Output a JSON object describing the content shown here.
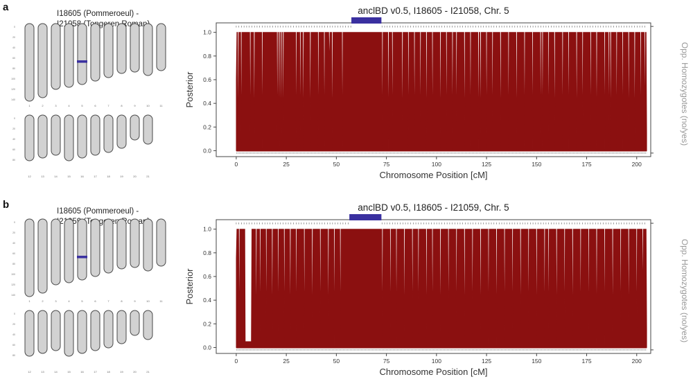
{
  "panels": [
    {
      "letter": "a",
      "pair_line1": "I18605 (Pommeroeul) -",
      "pair_line2": "I21058 (Tongeren Roman)",
      "highlight_chrom": 5,
      "highlight_frac": 0.62,
      "chart_data": {
        "type": "area",
        "title": "anclBD v0.5, I18605 - I21058, Chr. 5",
        "xlabel": "Chromosome Position [cM]",
        "ylabel": "Posterior",
        "ylabel_right": "Opp. Homozygotes (no/yes)",
        "xlim": [
          -10,
          207
        ],
        "ylim": [
          -0.05,
          1.08
        ],
        "xticks": [
          0,
          25,
          50,
          75,
          100,
          125,
          150,
          175,
          200
        ],
        "yticks": [
          0.0,
          0.2,
          0.4,
          0.6,
          0.8,
          1.0
        ],
        "ibd_segment": [
          57.5,
          72.5
        ],
        "posterior_drops": [
          [
            0,
            0.6
          ],
          [
            1,
            0.0
          ],
          [
            2.5,
            0.0
          ],
          [
            7,
            0.0
          ],
          [
            9,
            0.0
          ],
          [
            13,
            0.0
          ],
          [
            20.5,
            0.0
          ],
          [
            21.5,
            0.0
          ],
          [
            22.5,
            0.0
          ],
          [
            23.5,
            0.0
          ],
          [
            30,
            0.0
          ],
          [
            32,
            0.0
          ],
          [
            33.5,
            0.0
          ],
          [
            37,
            0.0
          ],
          [
            41,
            0.0
          ],
          [
            44,
            0.0
          ],
          [
            46.5,
            0.7
          ],
          [
            48,
            0.0
          ],
          [
            53,
            0.0
          ],
          [
            73,
            0.0
          ],
          [
            76,
            0.0
          ],
          [
            78,
            0.0
          ],
          [
            83,
            0.0
          ],
          [
            86,
            0.0
          ],
          [
            89,
            0.0
          ],
          [
            92,
            0.0
          ],
          [
            95,
            0.0
          ],
          [
            98,
            0.0
          ],
          [
            102,
            0.0
          ],
          [
            105,
            0.0
          ],
          [
            108,
            0.0
          ],
          [
            110,
            0.0
          ],
          [
            114,
            0.0
          ],
          [
            117,
            0.0
          ],
          [
            121,
            0.0
          ],
          [
            122,
            0.0
          ],
          [
            125,
            0.0
          ],
          [
            128,
            0.0
          ],
          [
            132,
            0.0
          ],
          [
            136,
            0.0
          ],
          [
            140,
            0.0
          ],
          [
            144,
            0.0
          ],
          [
            148,
            0.0
          ],
          [
            152,
            0.0
          ],
          [
            153,
            0.0
          ],
          [
            156,
            0.0
          ],
          [
            159,
            0.0
          ],
          [
            163,
            0.0
          ],
          [
            166,
            0.0
          ],
          [
            170,
            0.0
          ],
          [
            173,
            0.0
          ],
          [
            177,
            0.0
          ],
          [
            180,
            0.0
          ],
          [
            184,
            0.0
          ],
          [
            186,
            0.0
          ],
          [
            187,
            0.0
          ],
          [
            190,
            0.0
          ],
          [
            193,
            0.0
          ],
          [
            196,
            0.0
          ],
          [
            199,
            0.0
          ],
          [
            202,
            0.0
          ],
          [
            204,
            0.15
          ]
        ],
        "posterior_end": 205,
        "low_region": [
          [
            24.5,
            28.5
          ],
          [
            53.5,
            72.5
          ]
        ]
      }
    },
    {
      "letter": "b",
      "pair_line1": "I18605 (Pommeroeul) -",
      "pair_line2": "I21059 (Tongeren Roman)",
      "highlight_chrom": 5,
      "highlight_frac": 0.62,
      "chart_data": {
        "type": "area",
        "title": "anclBD v0.5, I18605 - I21059, Chr. 5",
        "xlabel": "Chromosome Position [cM]",
        "ylabel": "Posterior",
        "ylabel_right": "Opp. Homozygotes (no/yes)",
        "xlim": [
          -10,
          207
        ],
        "ylim": [
          -0.05,
          1.08
        ],
        "xticks": [
          0,
          25,
          50,
          75,
          100,
          125,
          150,
          175,
          200
        ],
        "yticks": [
          0.0,
          0.2,
          0.4,
          0.6,
          0.8,
          1.0
        ],
        "ibd_segment": [
          56.5,
          72.5
        ],
        "posterior_drops": [
          [
            0,
            0.75
          ],
          [
            1.5,
            0.0
          ],
          [
            3,
            1.0
          ],
          [
            4.5,
            0.05
          ],
          [
            7.5,
            0.0
          ],
          [
            10,
            0.0
          ],
          [
            12,
            0.0
          ],
          [
            15,
            0.0
          ],
          [
            18,
            0.0
          ],
          [
            21,
            0.0
          ],
          [
            24,
            0.0
          ],
          [
            27,
            0.0
          ],
          [
            30,
            0.0
          ],
          [
            34,
            0.0
          ],
          [
            38,
            0.0
          ],
          [
            42,
            0.0
          ],
          [
            46,
            0.0
          ],
          [
            49,
            0.0
          ],
          [
            52,
            0.0
          ],
          [
            73,
            0.0
          ],
          [
            77,
            0.0
          ],
          [
            80,
            0.0
          ],
          [
            84,
            0.0
          ],
          [
            88,
            0.0
          ],
          [
            91,
            0.0
          ],
          [
            95,
            0.0
          ],
          [
            98,
            0.0
          ],
          [
            102,
            0.0
          ],
          [
            106,
            0.0
          ],
          [
            110,
            0.0
          ],
          [
            114,
            0.0
          ],
          [
            118,
            0.0
          ],
          [
            122,
            0.0
          ],
          [
            126,
            0.0
          ],
          [
            130,
            0.0
          ],
          [
            134,
            0.0
          ],
          [
            138,
            0.0
          ],
          [
            142,
            0.0
          ],
          [
            146,
            0.0
          ],
          [
            150,
            0.0
          ],
          [
            154,
            0.0
          ],
          [
            156,
            0.0
          ],
          [
            160,
            0.0
          ],
          [
            164,
            0.0
          ],
          [
            168,
            0.0
          ],
          [
            172,
            0.0
          ],
          [
            176,
            0.0
          ],
          [
            180,
            0.0
          ],
          [
            184,
            0.0
          ],
          [
            188,
            0.0
          ],
          [
            192,
            0.0
          ],
          [
            196,
            0.0
          ],
          [
            200,
            0.0
          ],
          [
            203,
            0.35
          ]
        ],
        "posterior_end": 205,
        "low_region": [
          [
            2,
            7
          ],
          [
            55.5,
            72.5
          ]
        ]
      }
    }
  ],
  "colors": {
    "posterior": "#8b1010",
    "ibd_bar": "#3a30a0",
    "chrom_fill": "#d2d2d2",
    "chrom_stroke": "#4a4a4a",
    "marker": "#555555"
  }
}
